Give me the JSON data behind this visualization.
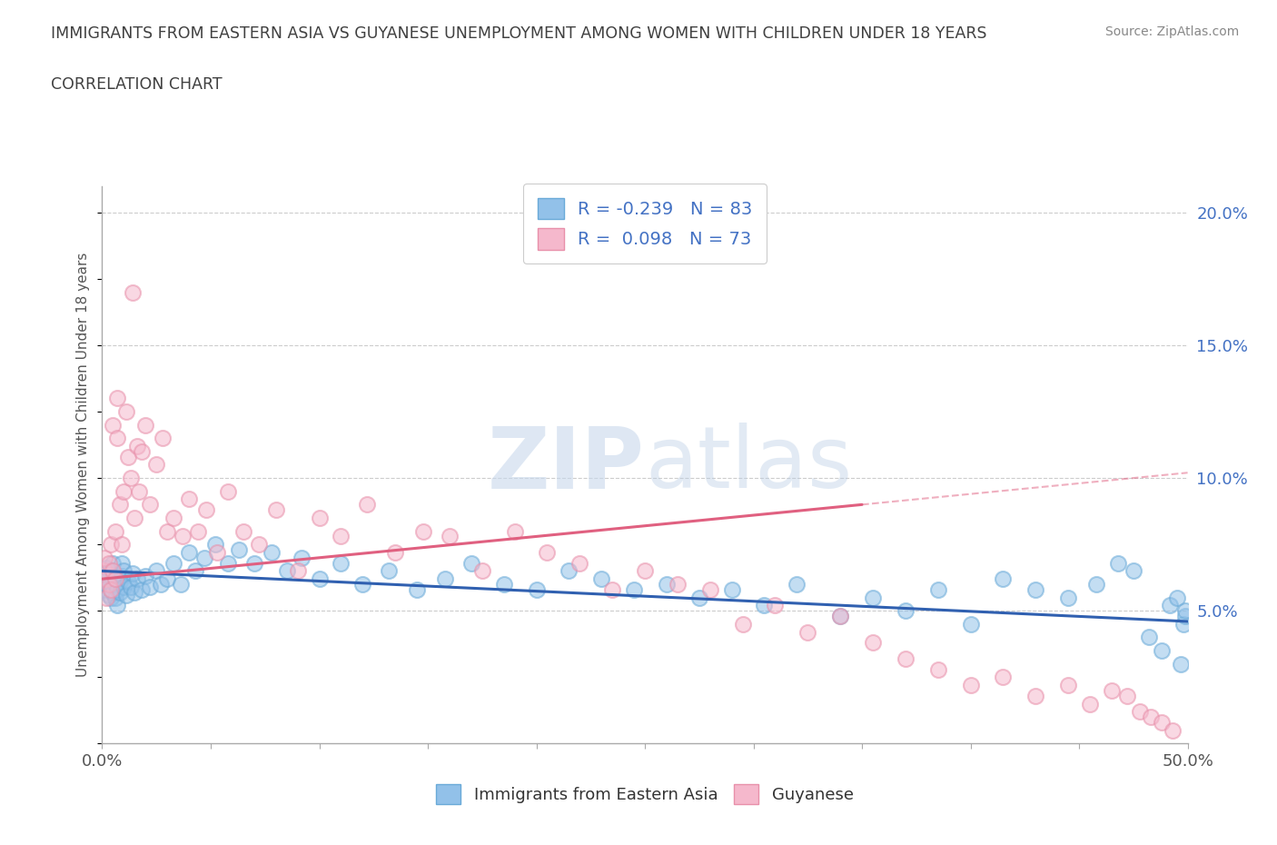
{
  "title": "IMMIGRANTS FROM EASTERN ASIA VS GUYANESE UNEMPLOYMENT AMONG WOMEN WITH CHILDREN UNDER 18 YEARS",
  "subtitle": "CORRELATION CHART",
  "source": "Source: ZipAtlas.com",
  "ylabel": "Unemployment Among Women with Children Under 18 years",
  "xlim": [
    0.0,
    0.5
  ],
  "ylim": [
    0.0,
    0.21
  ],
  "xticks": [
    0.0,
    0.05,
    0.1,
    0.15,
    0.2,
    0.25,
    0.3,
    0.35,
    0.4,
    0.45,
    0.5
  ],
  "yticks_right": [
    0.0,
    0.05,
    0.1,
    0.15,
    0.2
  ],
  "ytick_labels_right": [
    "",
    "5.0%",
    "10.0%",
    "15.0%",
    "20.0%"
  ],
  "series1_label": "Immigrants from Eastern Asia",
  "series1_color": "#92C1E9",
  "series1_edge_color": "#6aaad8",
  "series1_line_color": "#3060B0",
  "series1_R": -0.239,
  "series1_N": 83,
  "series2_label": "Guyanese",
  "series2_color": "#F5B8CC",
  "series2_edge_color": "#e890aa",
  "series2_line_color": "#E06080",
  "series2_R": 0.098,
  "series2_N": 73,
  "watermark": "ZIPatlas",
  "background_color": "#ffffff",
  "grid_color": "#cccccc",
  "title_color": "#404040",
  "legend_text_color": "#4472C4",
  "series1_x": [
    0.001,
    0.001,
    0.002,
    0.002,
    0.003,
    0.003,
    0.004,
    0.004,
    0.004,
    0.005,
    0.005,
    0.005,
    0.006,
    0.006,
    0.007,
    0.007,
    0.007,
    0.008,
    0.008,
    0.009,
    0.009,
    0.01,
    0.01,
    0.011,
    0.012,
    0.013,
    0.014,
    0.015,
    0.016,
    0.018,
    0.02,
    0.022,
    0.025,
    0.027,
    0.03,
    0.033,
    0.036,
    0.04,
    0.043,
    0.047,
    0.052,
    0.058,
    0.063,
    0.07,
    0.078,
    0.085,
    0.092,
    0.1,
    0.11,
    0.12,
    0.132,
    0.145,
    0.158,
    0.17,
    0.185,
    0.2,
    0.215,
    0.23,
    0.245,
    0.26,
    0.275,
    0.29,
    0.305,
    0.32,
    0.34,
    0.355,
    0.37,
    0.385,
    0.4,
    0.415,
    0.43,
    0.445,
    0.458,
    0.468,
    0.475,
    0.482,
    0.488,
    0.492,
    0.495,
    0.497,
    0.498,
    0.499,
    0.499
  ],
  "series1_y": [
    0.064,
    0.058,
    0.066,
    0.06,
    0.062,
    0.056,
    0.06,
    0.065,
    0.055,
    0.062,
    0.057,
    0.068,
    0.06,
    0.055,
    0.063,
    0.058,
    0.052,
    0.061,
    0.057,
    0.063,
    0.068,
    0.059,
    0.065,
    0.056,
    0.061,
    0.059,
    0.064,
    0.057,
    0.062,
    0.058,
    0.063,
    0.059,
    0.065,
    0.06,
    0.062,
    0.068,
    0.06,
    0.072,
    0.065,
    0.07,
    0.075,
    0.068,
    0.073,
    0.068,
    0.072,
    0.065,
    0.07,
    0.062,
    0.068,
    0.06,
    0.065,
    0.058,
    0.062,
    0.068,
    0.06,
    0.058,
    0.065,
    0.062,
    0.058,
    0.06,
    0.055,
    0.058,
    0.052,
    0.06,
    0.048,
    0.055,
    0.05,
    0.058,
    0.045,
    0.062,
    0.058,
    0.055,
    0.06,
    0.068,
    0.065,
    0.04,
    0.035,
    0.052,
    0.055,
    0.03,
    0.045,
    0.048,
    0.05
  ],
  "series2_x": [
    0.001,
    0.001,
    0.002,
    0.002,
    0.003,
    0.003,
    0.004,
    0.004,
    0.005,
    0.005,
    0.006,
    0.006,
    0.007,
    0.007,
    0.008,
    0.009,
    0.01,
    0.011,
    0.012,
    0.013,
    0.014,
    0.015,
    0.016,
    0.017,
    0.018,
    0.02,
    0.022,
    0.025,
    0.028,
    0.03,
    0.033,
    0.037,
    0.04,
    0.044,
    0.048,
    0.053,
    0.058,
    0.065,
    0.072,
    0.08,
    0.09,
    0.1,
    0.11,
    0.122,
    0.135,
    0.148,
    0.16,
    0.175,
    0.19,
    0.205,
    0.22,
    0.235,
    0.25,
    0.265,
    0.28,
    0.295,
    0.31,
    0.325,
    0.34,
    0.355,
    0.37,
    0.385,
    0.4,
    0.415,
    0.43,
    0.445,
    0.455,
    0.465,
    0.472,
    0.478,
    0.483,
    0.488,
    0.493
  ],
  "series2_y": [
    0.065,
    0.07,
    0.062,
    0.055,
    0.068,
    0.06,
    0.075,
    0.058,
    0.12,
    0.065,
    0.08,
    0.062,
    0.115,
    0.13,
    0.09,
    0.075,
    0.095,
    0.125,
    0.108,
    0.1,
    0.17,
    0.085,
    0.112,
    0.095,
    0.11,
    0.12,
    0.09,
    0.105,
    0.115,
    0.08,
    0.085,
    0.078,
    0.092,
    0.08,
    0.088,
    0.072,
    0.095,
    0.08,
    0.075,
    0.088,
    0.065,
    0.085,
    0.078,
    0.09,
    0.072,
    0.08,
    0.078,
    0.065,
    0.08,
    0.072,
    0.068,
    0.058,
    0.065,
    0.06,
    0.058,
    0.045,
    0.052,
    0.042,
    0.048,
    0.038,
    0.032,
    0.028,
    0.022,
    0.025,
    0.018,
    0.022,
    0.015,
    0.02,
    0.018,
    0.012,
    0.01,
    0.008,
    0.005
  ],
  "trend1_x0": 0.0,
  "trend1_x1": 0.5,
  "trend1_y0": 0.065,
  "trend1_y1": 0.046,
  "trend2_x0": 0.0,
  "trend2_x1": 0.35,
  "trend2_y0": 0.062,
  "trend2_y1": 0.09,
  "trend2_dash_x0": 0.35,
  "trend2_dash_x1": 0.5,
  "trend2_dash_y0": 0.09,
  "trend2_dash_y1": 0.102
}
